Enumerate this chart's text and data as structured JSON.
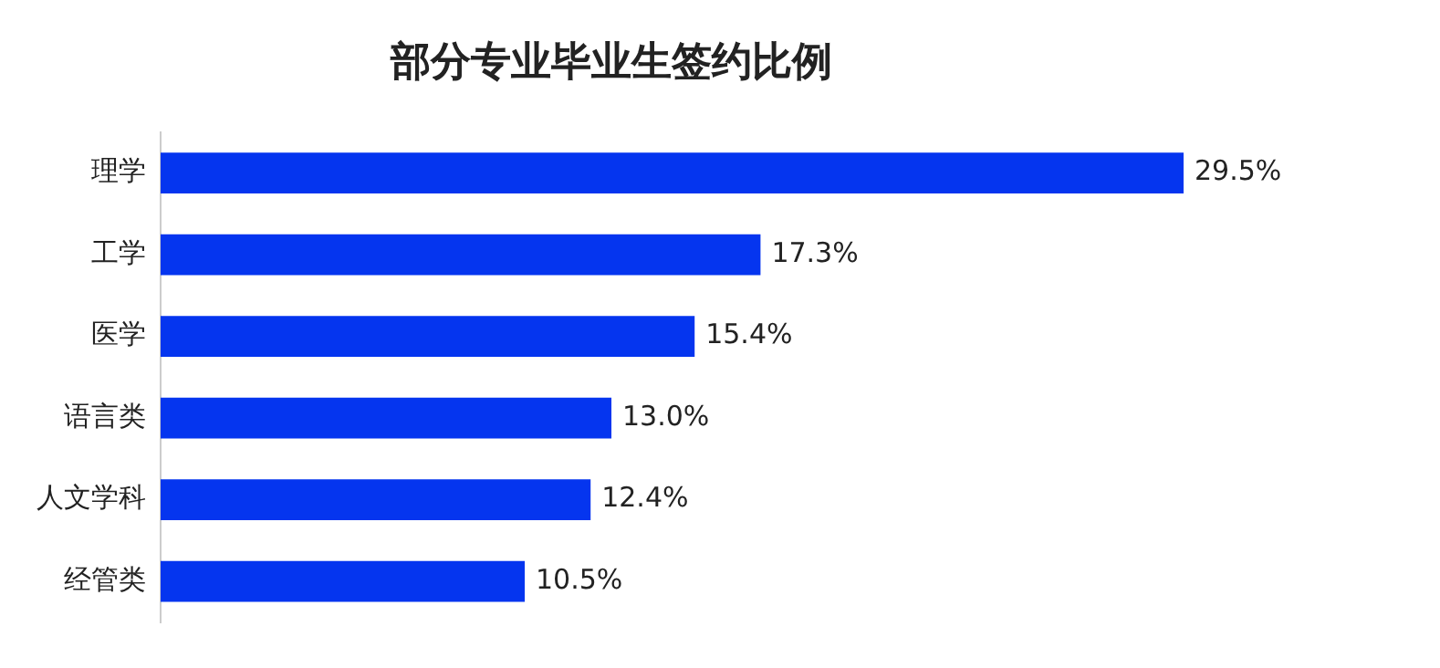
{
  "chart_data": {
    "type": "bar",
    "orientation": "horizontal",
    "title": "部分专业毕业生签约比例",
    "categories": [
      "理学",
      "工学",
      "医学",
      "语言类",
      "人文学科",
      "经管类"
    ],
    "values": [
      29.5,
      17.3,
      15.4,
      13.0,
      12.4,
      10.5
    ],
    "value_labels": [
      "29.5%",
      "17.3%",
      "15.4%",
      "13.0%",
      "12.4%",
      "10.5%"
    ],
    "color": "#0535ef",
    "legend": false
  }
}
